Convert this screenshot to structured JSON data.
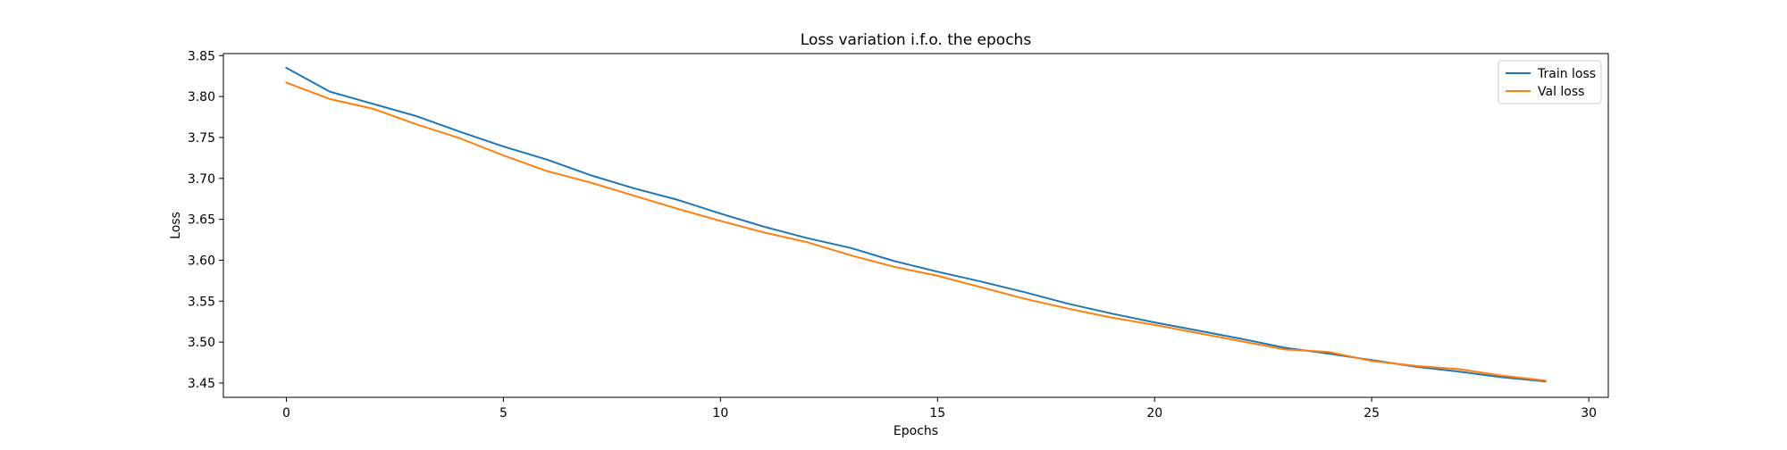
{
  "chart_data": {
    "type": "line",
    "title": "Loss variation i.f.o. the epochs",
    "xlabel": "Epochs",
    "ylabel": "Loss",
    "xlim": [
      -1.45,
      30.45
    ],
    "ylim": [
      3.4325,
      3.8525
    ],
    "xticks": [
      0,
      5,
      10,
      15,
      20,
      25,
      30
    ],
    "yticks": [
      3.45,
      3.5,
      3.55,
      3.6,
      3.65,
      3.7,
      3.75,
      3.8,
      3.85
    ],
    "grid": false,
    "legend_position": "top-right",
    "x": [
      0,
      1,
      2,
      3,
      4,
      5,
      6,
      7,
      8,
      9,
      10,
      11,
      12,
      13,
      14,
      15,
      16,
      17,
      18,
      19,
      20,
      21,
      22,
      23,
      24,
      25,
      26,
      27,
      28,
      29
    ],
    "series": [
      {
        "name": "Train loss",
        "color": "#1f77b4",
        "values": [
          3.835,
          3.806,
          3.791,
          3.776,
          3.757,
          3.739,
          3.723,
          3.704,
          3.688,
          3.674,
          3.657,
          3.641,
          3.627,
          3.615,
          3.599,
          3.586,
          3.574,
          3.561,
          3.547,
          3.535,
          3.524,
          3.514,
          3.504,
          3.493,
          3.486,
          3.478,
          3.47,
          3.464,
          3.457,
          3.452
        ]
      },
      {
        "name": "Val loss",
        "color": "#ff7f0e",
        "values": [
          3.817,
          3.797,
          3.785,
          3.766,
          3.749,
          3.728,
          3.709,
          3.695,
          3.679,
          3.663,
          3.648,
          3.634,
          3.622,
          3.606,
          3.592,
          3.581,
          3.567,
          3.553,
          3.541,
          3.53,
          3.521,
          3.511,
          3.501,
          3.491,
          3.488,
          3.477,
          3.471,
          3.467,
          3.459,
          3.453
        ]
      }
    ]
  }
}
